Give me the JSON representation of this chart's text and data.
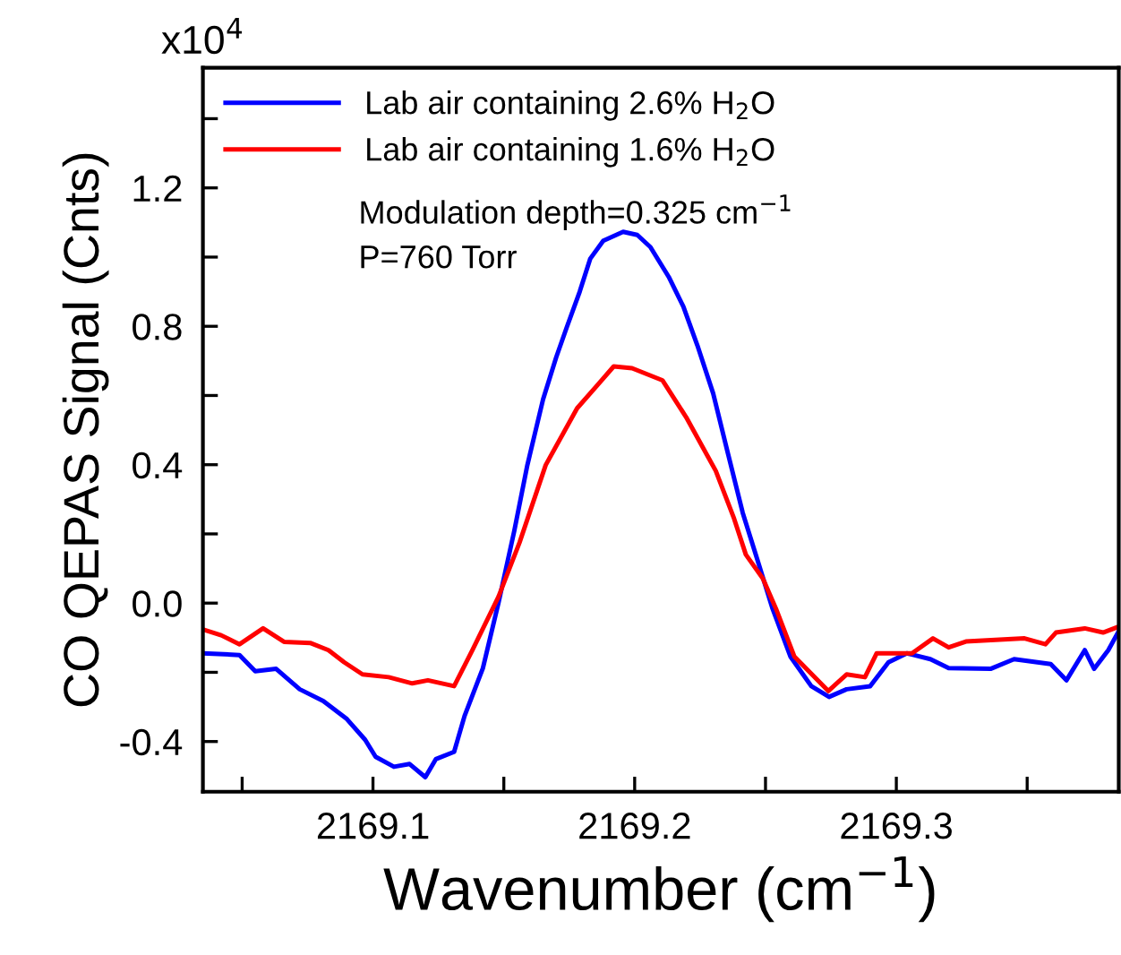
{
  "chart_data": {
    "type": "line",
    "xlabel": "Wavenumber (cm$^{−1}$)",
    "ylabel": "CO QEPAS Signal (Cnts)",
    "annotations": [
      "x10$^{4}$",
      "Modulation depth=0.325 cm$^{−1}$",
      "P=760 Torr"
    ],
    "xlim": [
      2169.035,
      2169.385
    ],
    "ylim": [
      -0.545,
      1.547
    ],
    "xticks": [
      {
        "value": 2169.05,
        "label": null
      },
      2169.1,
      {
        "value": 2169.15,
        "label": null
      },
      2169.2,
      {
        "value": 2169.25,
        "label": null
      },
      2169.3,
      {
        "value": 2169.35,
        "label": null
      }
    ],
    "yticks": [
      {
        "value": -0.4,
        "label": "-0.4"
      },
      {
        "value": -0.2,
        "label": null
      },
      {
        "value": 0.0,
        "label": "0.0"
      },
      {
        "value": 0.2,
        "label": null
      },
      {
        "value": 0.4,
        "label": "0.4"
      },
      {
        "value": 0.6,
        "label": null
      },
      {
        "value": 0.8,
        "label": "0.8"
      },
      {
        "value": 1.0,
        "label": null
      },
      {
        "value": 1.2,
        "label": "1.2"
      },
      {
        "value": 1.4,
        "label": null
      }
    ],
    "grid": false,
    "legend": "top left",
    "marker": "none",
    "line_style": "solid",
    "series": [
      {
        "name": "Lab air containing 2.6% H$_{2}$O",
        "color": "#0000ff",
        "x": [
          2169.035,
          2169.049,
          2169.055,
          2169.063,
          2169.072,
          2169.081,
          2169.09,
          2169.097,
          2169.101,
          2169.108,
          2169.114,
          2169.12,
          2169.124,
          2169.131,
          2169.135,
          2169.142,
          2169.148,
          2169.154,
          2169.159,
          2169.165,
          2169.17,
          2169.174,
          2169.179,
          2169.183,
          2169.188,
          2169.1956,
          2169.201,
          2169.206,
          2169.213,
          2169.2186,
          2169.224,
          2169.23,
          2169.2356,
          2169.2413,
          2169.247,
          2169.2527,
          2169.2595,
          2169.2675,
          2169.2743,
          2169.281,
          2169.29,
          2169.297,
          2169.304,
          2169.313,
          2169.32,
          2169.336,
          2169.345,
          2169.359,
          2169.365,
          2169.372,
          2169.3756,
          2169.381,
          2169.3847
        ],
        "values": [
          -0.145,
          -0.15,
          -0.197,
          -0.19,
          -0.249,
          -0.283,
          -0.335,
          -0.395,
          -0.444,
          -0.473,
          -0.465,
          -0.503,
          -0.451,
          -0.43,
          -0.326,
          -0.188,
          0.002,
          0.209,
          0.399,
          0.589,
          0.71,
          0.796,
          0.9,
          0.995,
          1.047,
          1.073,
          1.064,
          1.029,
          0.943,
          0.857,
          0.744,
          0.606,
          0.434,
          0.261,
          0.123,
          -0.016,
          -0.154,
          -0.24,
          -0.271,
          -0.249,
          -0.24,
          -0.171,
          -0.145,
          -0.162,
          -0.188,
          -0.19,
          -0.162,
          -0.176,
          -0.223,
          -0.136,
          -0.19,
          -0.136,
          -0.085
        ]
      },
      {
        "name": "Lab air containing 1.6% H$_{2}$O",
        "color": "#ff0000",
        "x": [
          2169.035,
          2169.042,
          2169.049,
          2169.058,
          2169.066,
          2169.076,
          2169.083,
          2169.089,
          2169.096,
          2169.106,
          2169.115,
          2169.121,
          2169.131,
          2169.138,
          2169.148,
          2169.156,
          2169.166,
          2169.178,
          2169.186,
          2169.192,
          2169.199,
          2169.2106,
          2169.2197,
          2169.231,
          2169.238,
          2169.2425,
          2169.249,
          2169.254,
          2169.261,
          2169.274,
          2169.281,
          2169.288,
          2169.2925,
          2169.306,
          2169.314,
          2169.32,
          2169.3266,
          2169.349,
          2169.357,
          2169.361,
          2169.372,
          2169.379,
          2169.385
        ],
        "values": [
          -0.076,
          -0.093,
          -0.119,
          -0.073,
          -0.112,
          -0.115,
          -0.136,
          -0.171,
          -0.206,
          -0.214,
          -0.232,
          -0.223,
          -0.24,
          -0.136,
          0.019,
          0.175,
          0.399,
          0.563,
          0.632,
          0.684,
          0.679,
          0.644,
          0.537,
          0.382,
          0.244,
          0.14,
          0.071,
          -0.016,
          -0.154,
          -0.254,
          -0.206,
          -0.214,
          -0.145,
          -0.145,
          -0.102,
          -0.128,
          -0.111,
          -0.102,
          -0.119,
          -0.085,
          -0.073,
          -0.085,
          -0.068
        ]
      }
    ]
  }
}
